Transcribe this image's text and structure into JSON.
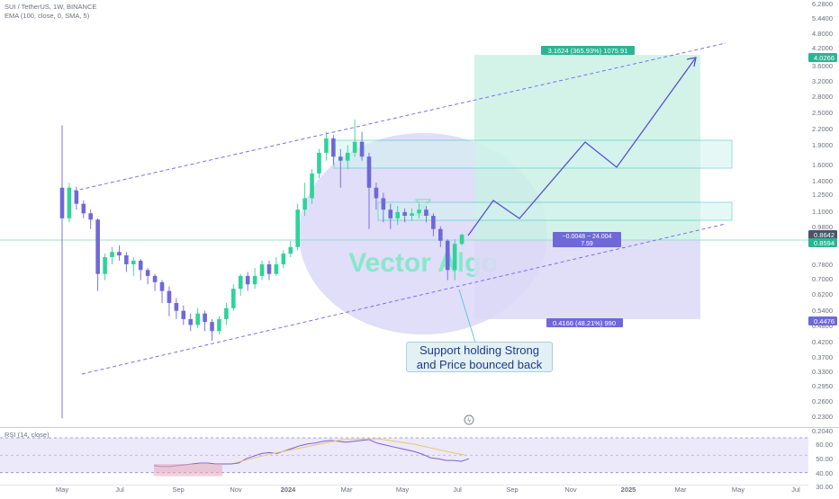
{
  "header": {
    "symbol": "SUI / TetherUS, 1W, BINANCE",
    "indicator": "EMA (100, close, 0, SMA, 5)",
    "rsi_label": "RSI (14, close)"
  },
  "watermark": "Vector Algo",
  "annotations": {
    "target_box_label": "3.1624 (365.93%) 1075.91",
    "middle_label_line1": "−0.0048 − 24.004",
    "middle_label_line2": "7.59",
    "lower_box_label": "0.4166 (48.21%) 990",
    "callout_line1": "Support holding Strong",
    "callout_line2": "and Price bounced back"
  },
  "price_badges": [
    {
      "text": "4.0266",
      "color": "#2bb594"
    },
    {
      "text": "0.8642",
      "color": "#4a5568"
    },
    {
      "text": "0.8594",
      "color": "#2bb594"
    },
    {
      "text": "0.4476",
      "color": "#6f68d8"
    }
  ],
  "colors": {
    "bull": "#2ed39a",
    "bear": "#6f68d8",
    "target_fill": "#c8f0e3",
    "stop_fill": "#dad9f6",
    "channel": "#7a6ff0",
    "zone_fill": "#d3f3ef",
    "zone_stroke": "#3cc7c2",
    "path": "#5a4fd0"
  },
  "chart_data": {
    "type": "candlestick",
    "interval": "1W",
    "price_scale": "log",
    "y_ticks": [
      "6.2800",
      "5.4400",
      "4.8000",
      "4.2000",
      "3.6000",
      "3.2000",
      "2.8000",
      "2.5000",
      "2.2000",
      "1.9000",
      "1.6000",
      "1.4000",
      "1.2500",
      "1.1000",
      "0.9800",
      "0.8642",
      "0.8594",
      "0.7800",
      "0.7000",
      "0.6200",
      "0.5400",
      "0.4800",
      "0.4476",
      "0.4200",
      "0.3700",
      "0.3300",
      "0.2950",
      "0.2600",
      "0.2300",
      "0.2040"
    ],
    "x_ticks": [
      "May",
      "Jul",
      "Sep",
      "Nov",
      "2024",
      "Mar",
      "May",
      "Jul",
      "Sep",
      "Nov",
      "2025",
      "Mar",
      "May",
      "Jul"
    ],
    "candles": [
      {
        "o": 1.25,
        "c": 0.98,
        "h": 2.05,
        "l": 0.2
      },
      {
        "o": 0.98,
        "c": 1.25,
        "h": 1.3,
        "l": 0.95
      },
      {
        "o": 1.22,
        "c": 1.1,
        "h": 1.26,
        "l": 1.05
      },
      {
        "o": 1.1,
        "c": 1.02,
        "h": 1.13,
        "l": 0.98
      },
      {
        "o": 1.02,
        "c": 0.97,
        "h": 1.05,
        "l": 0.9
      },
      {
        "o": 0.97,
        "c": 0.63,
        "h": 0.98,
        "l": 0.55
      },
      {
        "o": 0.63,
        "c": 0.72,
        "h": 0.74,
        "l": 0.6
      },
      {
        "o": 0.72,
        "c": 0.75,
        "h": 0.78,
        "l": 0.68
      },
      {
        "o": 0.75,
        "c": 0.73,
        "h": 0.79,
        "l": 0.7
      },
      {
        "o": 0.73,
        "c": 0.68,
        "h": 0.75,
        "l": 0.64
      },
      {
        "o": 0.68,
        "c": 0.7,
        "h": 0.72,
        "l": 0.62
      },
      {
        "o": 0.7,
        "c": 0.65,
        "h": 0.71,
        "l": 0.6
      },
      {
        "o": 0.65,
        "c": 0.62,
        "h": 0.66,
        "l": 0.58
      },
      {
        "o": 0.62,
        "c": 0.59,
        "h": 0.63,
        "l": 0.55
      },
      {
        "o": 0.59,
        "c": 0.55,
        "h": 0.6,
        "l": 0.5
      },
      {
        "o": 0.55,
        "c": 0.5,
        "h": 0.57,
        "l": 0.45
      },
      {
        "o": 0.5,
        "c": 0.47,
        "h": 0.52,
        "l": 0.44
      },
      {
        "o": 0.47,
        "c": 0.44,
        "h": 0.49,
        "l": 0.42
      },
      {
        "o": 0.44,
        "c": 0.42,
        "h": 0.46,
        "l": 0.4
      },
      {
        "o": 0.42,
        "c": 0.46,
        "h": 0.48,
        "l": 0.41
      },
      {
        "o": 0.46,
        "c": 0.43,
        "h": 0.47,
        "l": 0.4
      },
      {
        "o": 0.43,
        "c": 0.4,
        "h": 0.44,
        "l": 0.37
      },
      {
        "o": 0.4,
        "c": 0.44,
        "h": 0.45,
        "l": 0.39
      },
      {
        "o": 0.44,
        "c": 0.48,
        "h": 0.5,
        "l": 0.42
      },
      {
        "o": 0.48,
        "c": 0.56,
        "h": 0.58,
        "l": 0.47
      },
      {
        "o": 0.56,
        "c": 0.62,
        "h": 0.63,
        "l": 0.53
      },
      {
        "o": 0.62,
        "c": 0.58,
        "h": 0.64,
        "l": 0.55
      },
      {
        "o": 0.58,
        "c": 0.62,
        "h": 0.66,
        "l": 0.56
      },
      {
        "o": 0.62,
        "c": 0.68,
        "h": 0.7,
        "l": 0.6
      },
      {
        "o": 0.68,
        "c": 0.63,
        "h": 0.7,
        "l": 0.6
      },
      {
        "o": 0.63,
        "c": 0.68,
        "h": 0.72,
        "l": 0.62
      },
      {
        "o": 0.68,
        "c": 0.74,
        "h": 0.76,
        "l": 0.66
      },
      {
        "o": 0.74,
        "c": 0.78,
        "h": 0.82,
        "l": 0.72
      },
      {
        "o": 0.78,
        "c": 1.05,
        "h": 1.1,
        "l": 0.76
      },
      {
        "o": 1.05,
        "c": 1.15,
        "h": 1.3,
        "l": 1.0
      },
      {
        "o": 1.15,
        "c": 1.4,
        "h": 1.45,
        "l": 1.1
      },
      {
        "o": 1.4,
        "c": 1.65,
        "h": 1.7,
        "l": 1.35
      },
      {
        "o": 1.65,
        "c": 1.85,
        "h": 1.95,
        "l": 1.55
      },
      {
        "o": 1.85,
        "c": 1.6,
        "h": 1.9,
        "l": 1.5
      },
      {
        "o": 1.6,
        "c": 1.55,
        "h": 1.7,
        "l": 1.25
      },
      {
        "o": 1.55,
        "c": 1.65,
        "h": 1.75,
        "l": 1.45
      },
      {
        "o": 1.65,
        "c": 1.8,
        "h": 2.15,
        "l": 1.6
      },
      {
        "o": 1.8,
        "c": 1.6,
        "h": 1.95,
        "l": 1.55
      },
      {
        "o": 1.6,
        "c": 1.25,
        "h": 1.65,
        "l": 0.9
      },
      {
        "o": 1.25,
        "c": 1.15,
        "h": 1.3,
        "l": 1.05
      },
      {
        "o": 1.15,
        "c": 1.05,
        "h": 1.2,
        "l": 0.95
      },
      {
        "o": 1.05,
        "c": 0.98,
        "h": 1.1,
        "l": 0.9
      },
      {
        "o": 0.98,
        "c": 1.03,
        "h": 1.08,
        "l": 0.93
      },
      {
        "o": 1.03,
        "c": 1.0,
        "h": 1.06,
        "l": 0.95
      },
      {
        "o": 1.0,
        "c": 1.02,
        "h": 1.06,
        "l": 0.96
      },
      {
        "o": 1.02,
        "c": 1.05,
        "h": 1.1,
        "l": 0.98
      },
      {
        "o": 1.05,
        "c": 1.0,
        "h": 1.08,
        "l": 0.95
      },
      {
        "o": 1.0,
        "c": 0.9,
        "h": 1.02,
        "l": 0.85
      },
      {
        "o": 0.9,
        "c": 0.82,
        "h": 0.92,
        "l": 0.78
      },
      {
        "o": 0.82,
        "c": 0.65,
        "h": 0.83,
        "l": 0.6
      },
      {
        "o": 0.65,
        "c": 0.8,
        "h": 0.83,
        "l": 0.6
      },
      {
        "o": 0.8,
        "c": 0.86,
        "h": 0.87,
        "l": 0.79
      }
    ],
    "rsi": {
      "ylim": [
        30,
        70
      ],
      "y_ticks": [
        "60.00",
        "50.00",
        "40.00",
        "30.00"
      ],
      "values": [
        38,
        37,
        37,
        38,
        39,
        40,
        41,
        41,
        40,
        40,
        40,
        41,
        46,
        49,
        52,
        53,
        52,
        55,
        58,
        61,
        63,
        64,
        66,
        67,
        66,
        65,
        66,
        67,
        68,
        64,
        62,
        60,
        58,
        56,
        54,
        51,
        47,
        46,
        44,
        44,
        43,
        46
      ]
    }
  }
}
